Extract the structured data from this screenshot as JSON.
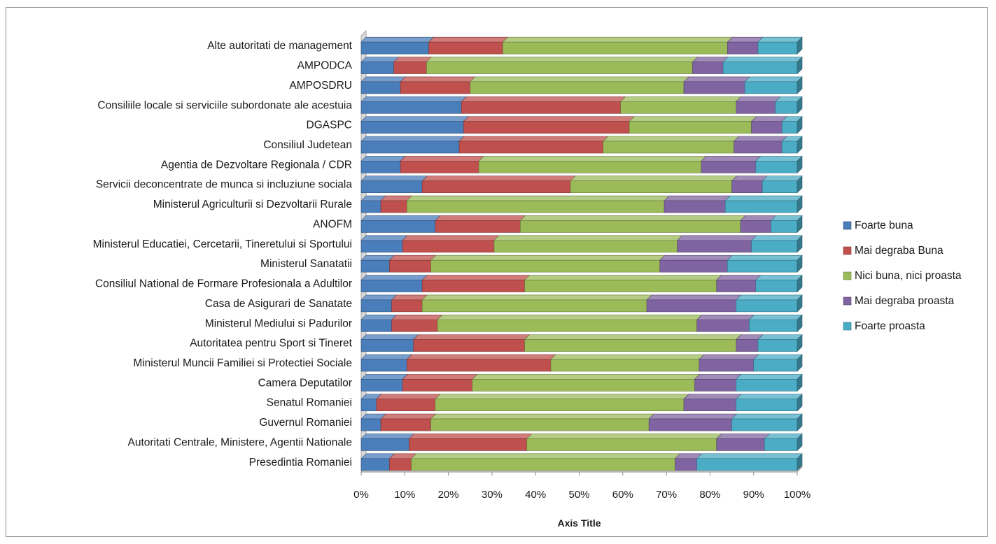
{
  "chart_data": {
    "type": "bar",
    "orientation": "horizontal",
    "stacked": "percent",
    "title": "",
    "xlabel": "Axis Title",
    "ylabel": "",
    "xlim": [
      0,
      100
    ],
    "x_ticks": [
      "0%",
      "10%",
      "20%",
      "30%",
      "40%",
      "50%",
      "60%",
      "70%",
      "80%",
      "90%",
      "100%"
    ],
    "grid": false,
    "legend_position": "right",
    "categories": [
      "Presedintia Romaniei",
      "Autoritati Centrale, Ministere, Agentii Nationale",
      "Guvernul Romaniei",
      "Senatul Romaniei",
      "Camera Deputatilor",
      "Ministerul Muncii Familiei si Protectiei Sociale",
      "Autoritatea pentru Sport si Tineret",
      "Ministerul Mediului si Padurilor",
      "Casa de Asigurari de Sanatate",
      "Consiliul National de Formare Profesionala a Adultilor",
      "Ministerul Sanatatii",
      "Ministerul Educatiei, Cercetarii, Tineretului si Sportului",
      "ANOFM",
      "Ministerul Agriculturii si Dezvoltarii Rurale",
      "Servicii deconcentrate de munca si incluziune sociala",
      "Agentia de Dezvoltare Regionala / CDR",
      "Consiliul Judetean",
      "DGASPC",
      "Consiliile locale si serviciile subordonate ale acestuia",
      "AMPOSDRU",
      "AMPODCA",
      "Alte autoritati de management"
    ],
    "series": [
      {
        "name": "Foarte buna",
        "color": "#4a7ebb",
        "values": [
          6.5,
          11,
          4.5,
          3.5,
          9.5,
          10.5,
          12,
          7,
          7,
          14,
          6.5,
          9.5,
          17,
          4.5,
          14,
          9,
          22.5,
          23.5,
          23,
          9,
          7.5,
          15.5
        ]
      },
      {
        "name": "Mai degraba Buna",
        "color": "#c0504d",
        "values": [
          5,
          27,
          11.5,
          13.5,
          16,
          33,
          25.5,
          10.5,
          7,
          23.5,
          9.5,
          21,
          19.5,
          6,
          34,
          18,
          33,
          38,
          36.5,
          16,
          7.5,
          17
        ]
      },
      {
        "name": "Nici buna, nici proasta",
        "color": "#9bbb59",
        "values": [
          60.5,
          43.5,
          50,
          57,
          51,
          34,
          48.5,
          59.5,
          51.5,
          44,
          52.5,
          42,
          50.5,
          59,
          37,
          51,
          30,
          28,
          26.5,
          49,
          61,
          51.5
        ]
      },
      {
        "name": "Mai degraba proasta",
        "color": "#8064a2",
        "values": [
          5,
          11,
          19,
          12,
          9.5,
          12.5,
          5,
          12,
          20.5,
          9,
          15.5,
          17,
          7,
          14,
          7,
          12.5,
          11,
          7,
          9,
          14,
          7,
          7
        ]
      },
      {
        "name": "Foarte proasta",
        "color": "#4bacc6",
        "values": [
          23,
          7.5,
          15,
          14,
          14,
          10,
          9,
          11,
          14,
          9.5,
          16,
          10.5,
          6,
          16.5,
          8,
          9.5,
          3.5,
          3.5,
          5,
          12,
          17,
          9
        ]
      }
    ]
  }
}
